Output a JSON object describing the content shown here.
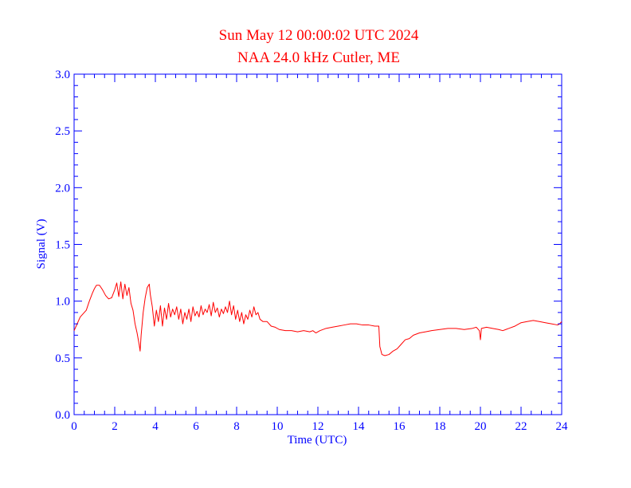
{
  "chart_data": {
    "type": "line",
    "title": "Sun May 12 00:00:02 UTC 2024",
    "subtitle": "NAA 24.0 kHz Cutler, ME",
    "xlabel": "Time (UTC)",
    "ylabel": "Signal (V)",
    "xlim": [
      0,
      24
    ],
    "ylim": [
      0,
      3.0
    ],
    "x_ticks": [
      0,
      2,
      4,
      6,
      8,
      10,
      12,
      14,
      16,
      18,
      20,
      22,
      24
    ],
    "x_tick_labels": [
      "0",
      "2",
      "4",
      "6",
      "8",
      "10",
      "12",
      "14",
      "16",
      "18",
      "20",
      "22",
      "24"
    ],
    "y_ticks": [
      0,
      0.5,
      1.0,
      1.5,
      2.0,
      2.5,
      3.0
    ],
    "y_tick_labels": [
      "0.0",
      "0.5",
      "1.0",
      "1.5",
      "2.0",
      "2.5",
      "3.0"
    ],
    "x_minor_step": 0.5,
    "y_minor_step": 0.1,
    "grid": false,
    "legend": "none",
    "colors": {
      "axis": "#0000ff",
      "series": "#ff0000",
      "title": "#ff0000",
      "background": "#ffffff"
    },
    "series": [
      {
        "x": [
          0.0,
          0.15,
          0.3,
          0.45,
          0.6,
          0.75,
          0.9,
          1.0,
          1.1,
          1.25,
          1.4,
          1.55,
          1.7,
          1.85,
          2.0,
          2.1,
          2.2,
          2.3,
          2.4,
          2.5,
          2.6,
          2.7,
          2.8,
          2.9,
          3.0,
          3.1,
          3.2,
          3.25,
          3.3,
          3.4,
          3.5,
          3.6,
          3.7,
          3.75,
          3.85,
          3.95,
          4.05,
          4.15,
          4.25,
          4.35,
          4.45,
          4.55,
          4.65,
          4.75,
          4.85,
          4.95,
          5.05,
          5.15,
          5.25,
          5.35,
          5.45,
          5.55,
          5.65,
          5.75,
          5.85,
          5.95,
          6.05,
          6.15,
          6.25,
          6.35,
          6.45,
          6.55,
          6.65,
          6.75,
          6.85,
          6.95,
          7.05,
          7.15,
          7.25,
          7.35,
          7.45,
          7.55,
          7.65,
          7.75,
          7.85,
          7.95,
          8.05,
          8.15,
          8.25,
          8.35,
          8.45,
          8.55,
          8.65,
          8.75,
          8.85,
          8.95,
          9.05,
          9.15,
          9.3,
          9.5,
          9.7,
          9.9,
          10.1,
          10.4,
          10.7,
          11.0,
          11.3,
          11.6,
          11.75,
          11.9,
          12.1,
          12.4,
          12.7,
          13.0,
          13.3,
          13.6,
          13.9,
          14.2,
          14.5,
          14.8,
          15.0,
          15.05,
          15.15,
          15.3,
          15.5,
          15.7,
          15.9,
          16.1,
          16.3,
          16.5,
          16.7,
          17.0,
          17.3,
          17.6,
          18.0,
          18.4,
          18.8,
          19.2,
          19.6,
          19.8,
          19.95,
          20.0,
          20.05,
          20.3,
          20.6,
          20.9,
          21.1,
          21.4,
          21.7,
          22.0,
          22.3,
          22.6,
          22.9,
          23.2,
          23.5,
          23.8,
          23.9,
          24.0
        ],
        "values": [
          0.74,
          0.8,
          0.86,
          0.89,
          0.92,
          1.0,
          1.07,
          1.11,
          1.14,
          1.14,
          1.1,
          1.05,
          1.02,
          1.03,
          1.1,
          1.16,
          1.04,
          1.17,
          1.02,
          1.15,
          1.05,
          1.12,
          0.98,
          0.92,
          0.8,
          0.72,
          0.62,
          0.56,
          0.7,
          0.9,
          1.03,
          1.12,
          1.15,
          1.06,
          0.95,
          0.78,
          0.92,
          0.82,
          0.96,
          0.78,
          0.94,
          0.84,
          0.98,
          0.86,
          0.93,
          0.88,
          0.95,
          0.84,
          0.93,
          0.8,
          0.9,
          0.84,
          0.93,
          0.82,
          0.95,
          0.87,
          0.91,
          0.86,
          0.96,
          0.88,
          0.93,
          0.9,
          0.97,
          0.87,
          0.99,
          0.9,
          0.94,
          0.86,
          0.93,
          0.89,
          0.95,
          0.9,
          1.0,
          0.88,
          0.96,
          0.84,
          0.92,
          0.82,
          0.9,
          0.8,
          0.88,
          0.84,
          0.92,
          0.86,
          0.95,
          0.88,
          0.9,
          0.84,
          0.82,
          0.82,
          0.78,
          0.77,
          0.75,
          0.74,
          0.74,
          0.73,
          0.74,
          0.73,
          0.74,
          0.72,
          0.74,
          0.76,
          0.77,
          0.78,
          0.79,
          0.8,
          0.8,
          0.79,
          0.79,
          0.78,
          0.78,
          0.6,
          0.53,
          0.52,
          0.53,
          0.56,
          0.58,
          0.62,
          0.66,
          0.67,
          0.7,
          0.72,
          0.73,
          0.74,
          0.75,
          0.76,
          0.76,
          0.75,
          0.76,
          0.77,
          0.74,
          0.66,
          0.76,
          0.77,
          0.76,
          0.75,
          0.74,
          0.76,
          0.78,
          0.81,
          0.82,
          0.83,
          0.82,
          0.81,
          0.8,
          0.79,
          0.8,
          0.82
        ]
      }
    ]
  }
}
